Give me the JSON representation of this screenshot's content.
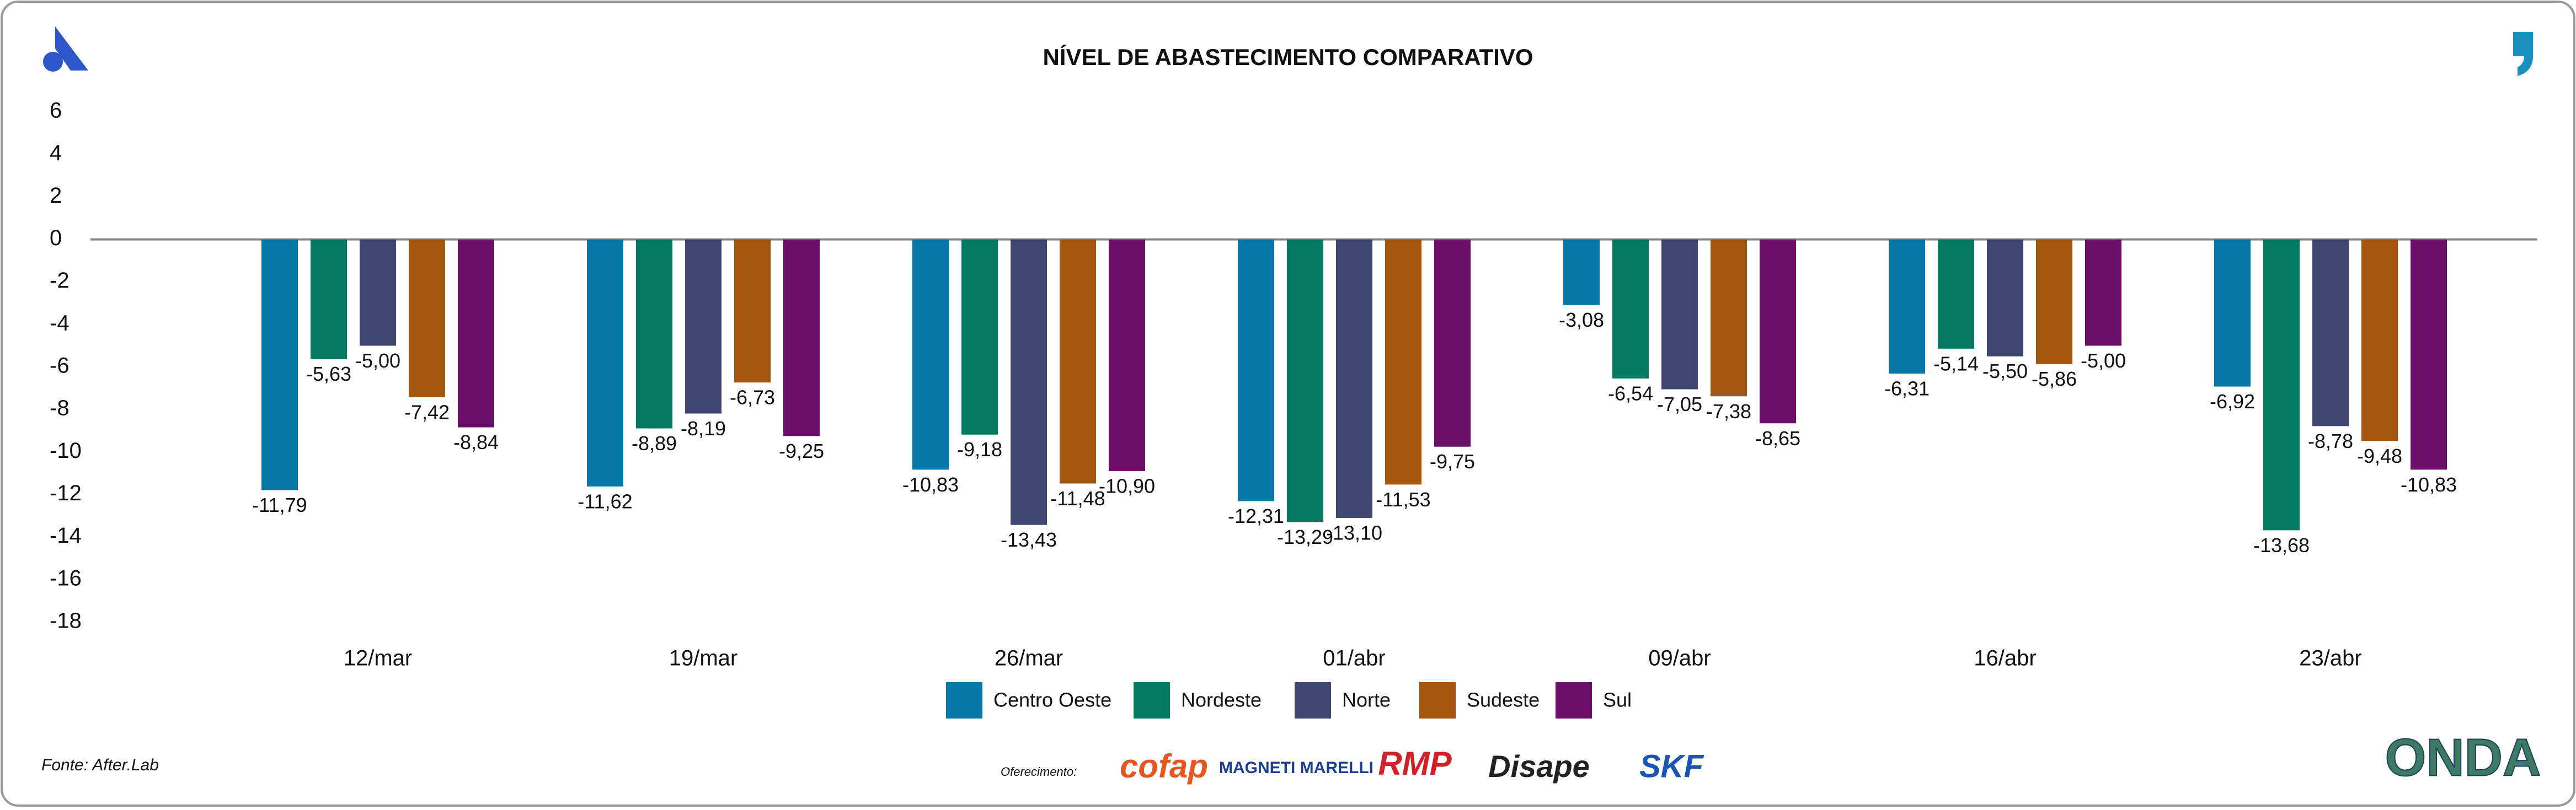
{
  "chart_data": {
    "type": "bar",
    "title": "NÍVEL DE ABASTECIMENTO COMPARATIVO",
    "categories": [
      "12/mar",
      "19/mar",
      "26/mar",
      "01/abr",
      "09/abr",
      "16/abr",
      "23/abr"
    ],
    "series": [
      {
        "name": "Centro Oeste",
        "color": "#0878a8",
        "values": [
          -11.79,
          -11.62,
          -10.83,
          -12.31,
          -3.08,
          -6.31,
          -6.92
        ],
        "value_labels": [
          "-11,79",
          "-11,62",
          "-10,83",
          "-12,31",
          "-3,08",
          "-6,31",
          "-6,92"
        ]
      },
      {
        "name": "Nordeste",
        "color": "#047a62",
        "values": [
          -5.63,
          -8.89,
          -9.18,
          -13.29,
          -6.54,
          -5.14,
          -13.68
        ],
        "value_labels": [
          "-5,63",
          "-8,89",
          "-9,18",
          "-13,29",
          "-6,54",
          "-5,14",
          "-13,68"
        ]
      },
      {
        "name": "Norte",
        "color": "#3f4670",
        "values": [
          -5.0,
          -8.19,
          -13.43,
          -13.1,
          -7.05,
          -5.5,
          -8.78
        ],
        "value_labels": [
          "-5,00",
          "-8,19",
          "-13,43",
          "-13,10",
          "-7,05",
          "-5,50",
          "-8,78"
        ]
      },
      {
        "name": "Sudeste",
        "color": "#a4550e",
        "values": [
          -7.42,
          -6.73,
          -11.48,
          -11.53,
          -7.38,
          -5.86,
          -9.48
        ],
        "value_labels": [
          "-7,42",
          "-6,73",
          "-11,48",
          "-11,53",
          "-7,38",
          "-5,86",
          "-9,48"
        ]
      },
      {
        "name": "Sul",
        "color": "#6c0f6b",
        "values": [
          -8.84,
          -9.25,
          -10.9,
          -9.75,
          -8.65,
          -5.0,
          -10.83
        ],
        "value_labels": [
          "-8,84",
          "-9,25",
          "-10,90",
          "-9,75",
          "-8,65",
          "-5,00",
          "-10,83"
        ]
      }
    ],
    "ylim": [
      -18,
      6
    ],
    "yticks": [
      6,
      4,
      2,
      0,
      -2,
      -4,
      -6,
      -8,
      -10,
      -12,
      -14,
      -16,
      -18
    ],
    "grid": false
  },
  "footer": {
    "source": "Fonte: After.Lab",
    "sponsor_label": "Oferecimento:",
    "sponsors": [
      "cofap",
      "MAGNETI MARELLI",
      "RMP",
      "Disape",
      "SKF"
    ],
    "brand": "ONDA"
  }
}
